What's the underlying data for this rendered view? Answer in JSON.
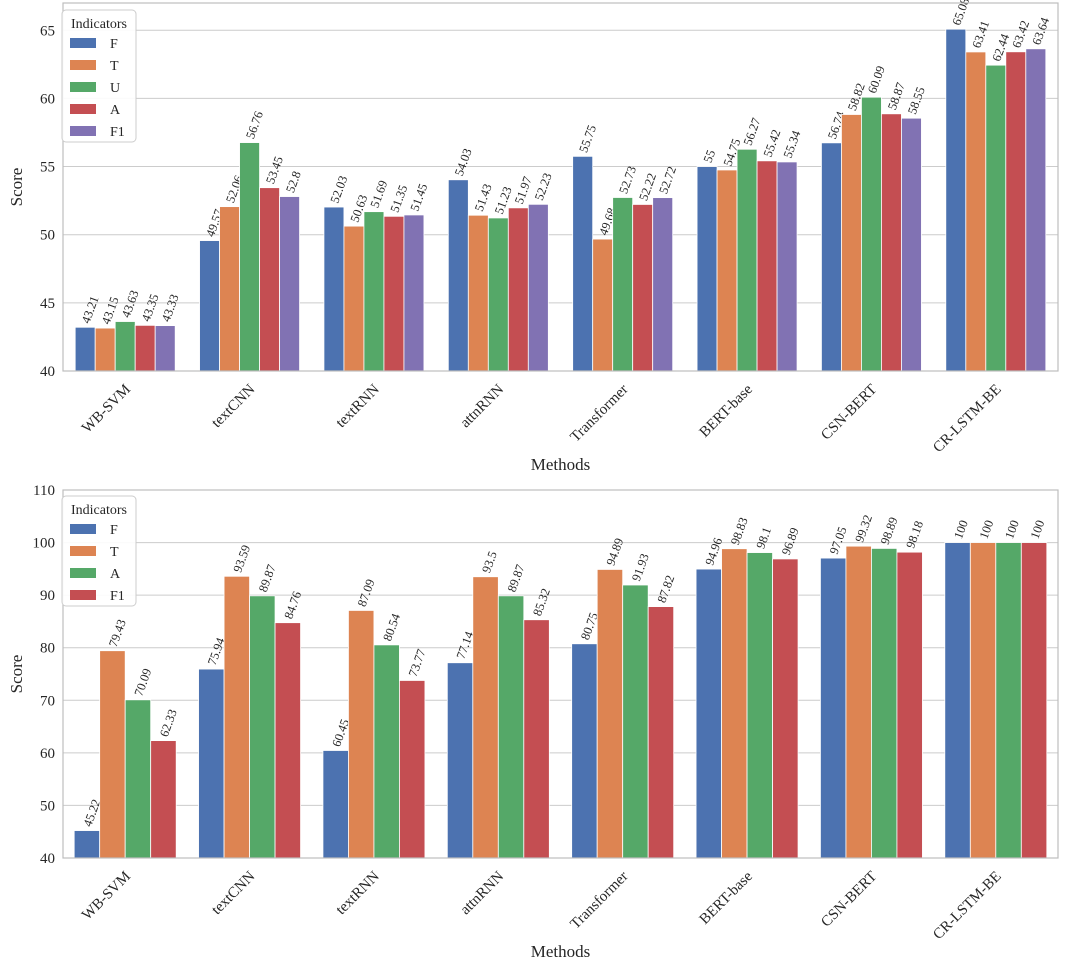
{
  "chart_data": [
    {
      "type": "bar",
      "title": "",
      "xlabel": "Methods",
      "ylabel": "Score",
      "ylim": [
        40,
        67
      ],
      "yticks": [
        40,
        45,
        50,
        55,
        60,
        65
      ],
      "grid": true,
      "legend_title": "Indicators",
      "legend_position": "top-left",
      "categories": [
        "WB-SVM",
        "textCNN",
        "textRNN",
        "attnRNN",
        "Transformer",
        "BERT-base",
        "CSN-BERT",
        "CR-LSTM-BE"
      ],
      "series": [
        {
          "name": "F",
          "color": "#4c72b0",
          "values": [
            43.21,
            49.57,
            52.03,
            54.03,
            55.75,
            55,
            56.74,
            65.08
          ]
        },
        {
          "name": "T",
          "color": "#dd8452",
          "values": [
            43.15,
            52.06,
            50.63,
            51.43,
            49.68,
            54.75,
            58.82,
            63.41
          ]
        },
        {
          "name": "U",
          "color": "#55a868",
          "values": [
            43.63,
            56.76,
            51.69,
            51.23,
            52.73,
            56.27,
            60.09,
            62.44
          ]
        },
        {
          "name": "A",
          "color": "#c44e52",
          "values": [
            43.35,
            53.45,
            51.35,
            51.97,
            52.22,
            55.42,
            58.87,
            63.42
          ]
        },
        {
          "name": "F1",
          "color": "#8172b3",
          "values": [
            43.33,
            52.8,
            51.45,
            52.23,
            52.72,
            55.34,
            58.55,
            63.64
          ]
        }
      ]
    },
    {
      "type": "bar",
      "title": "",
      "xlabel": "Methods",
      "ylabel": "Score",
      "ylim": [
        40,
        110
      ],
      "yticks": [
        40,
        50,
        60,
        70,
        80,
        90,
        100,
        110
      ],
      "grid": true,
      "legend_title": "Indicators",
      "legend_position": "top-left",
      "categories": [
        "WB-SVM",
        "textCNN",
        "textRNN",
        "attnRNN",
        "Transformer",
        "BERT-base",
        "CSN-BERT",
        "CR-LSTM-BE"
      ],
      "series": [
        {
          "name": "F",
          "color": "#4c72b0",
          "values": [
            45.22,
            75.94,
            60.45,
            77.14,
            80.75,
            94.96,
            97.05,
            100
          ]
        },
        {
          "name": "T",
          "color": "#dd8452",
          "values": [
            79.43,
            93.59,
            87.09,
            93.5,
            94.89,
            98.83,
            99.32,
            100
          ]
        },
        {
          "name": "A",
          "color": "#55a868",
          "values": [
            70.09,
            89.87,
            80.54,
            89.87,
            91.93,
            98.1,
            98.89,
            100
          ]
        },
        {
          "name": "F1",
          "color": "#c44e52",
          "values": [
            62.33,
            84.76,
            73.77,
            85.32,
            87.82,
            96.89,
            98.18,
            100
          ]
        }
      ]
    }
  ]
}
